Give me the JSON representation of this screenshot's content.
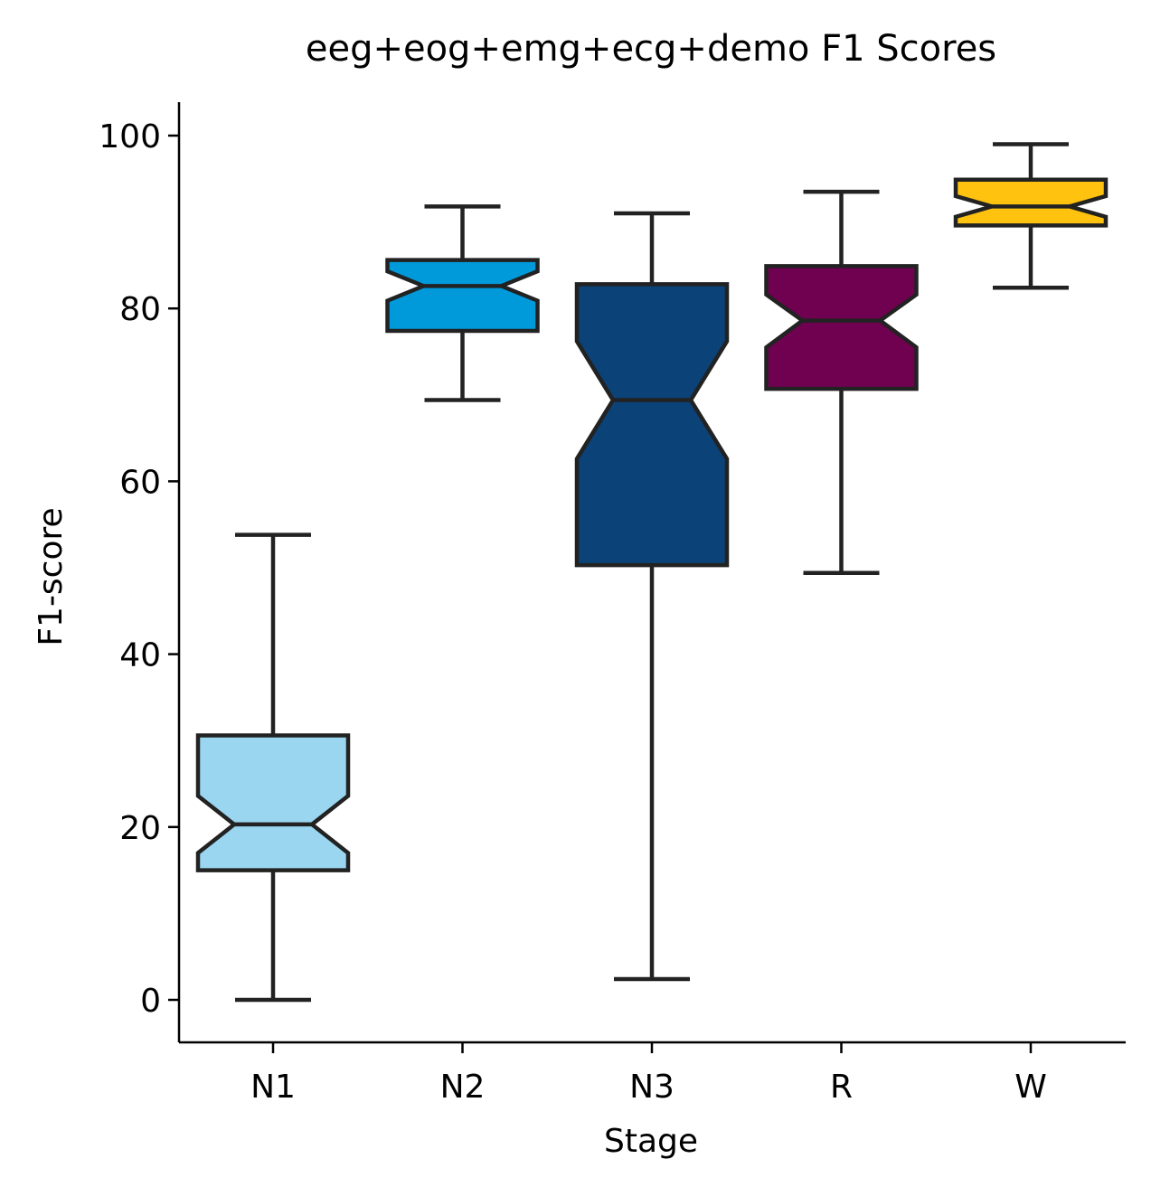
{
  "chart_data": {
    "type": "box",
    "title": "eeg+eog+emg+ecg+demo F1 Scores",
    "xlabel": "Stage",
    "ylabel": "F1-score",
    "ylim": [
      -5,
      104
    ],
    "yticks": [
      0,
      20,
      40,
      60,
      80,
      100
    ],
    "grid": false,
    "notched": true,
    "categories": [
      "N1",
      "N2",
      "N3",
      "R",
      "W"
    ],
    "boxes": [
      {
        "category": "N1",
        "whisker_low": 0.0,
        "q1": 15.0,
        "notch_low": 17.0,
        "median": 20.3,
        "notch_high": 23.6,
        "q3": 30.6,
        "whisker_high": 53.8,
        "color": "#9AD6F0"
      },
      {
        "category": "N2",
        "whisker_low": 69.4,
        "q1": 77.4,
        "notch_low": 80.9,
        "median": 82.6,
        "notch_high": 84.3,
        "q3": 85.6,
        "whisker_high": 91.8,
        "color": "#009ADB"
      },
      {
        "category": "N3",
        "whisker_low": 2.4,
        "q1": 50.3,
        "notch_low": 62.6,
        "median": 69.4,
        "notch_high": 76.2,
        "q3": 82.8,
        "whisker_high": 91.0,
        "color": "#0B4277"
      },
      {
        "category": "R",
        "whisker_low": 49.4,
        "q1": 70.7,
        "notch_low": 75.5,
        "median": 78.6,
        "notch_high": 81.6,
        "q3": 84.9,
        "whisker_high": 93.5,
        "color": "#700050"
      },
      {
        "category": "W",
        "whisker_low": 82.4,
        "q1": 89.6,
        "notch_low": 90.6,
        "median": 91.8,
        "notch_high": 93.0,
        "q3": 94.9,
        "whisker_high": 99.0,
        "color": "#FFC20F"
      }
    ],
    "edge_color": "#222222"
  }
}
